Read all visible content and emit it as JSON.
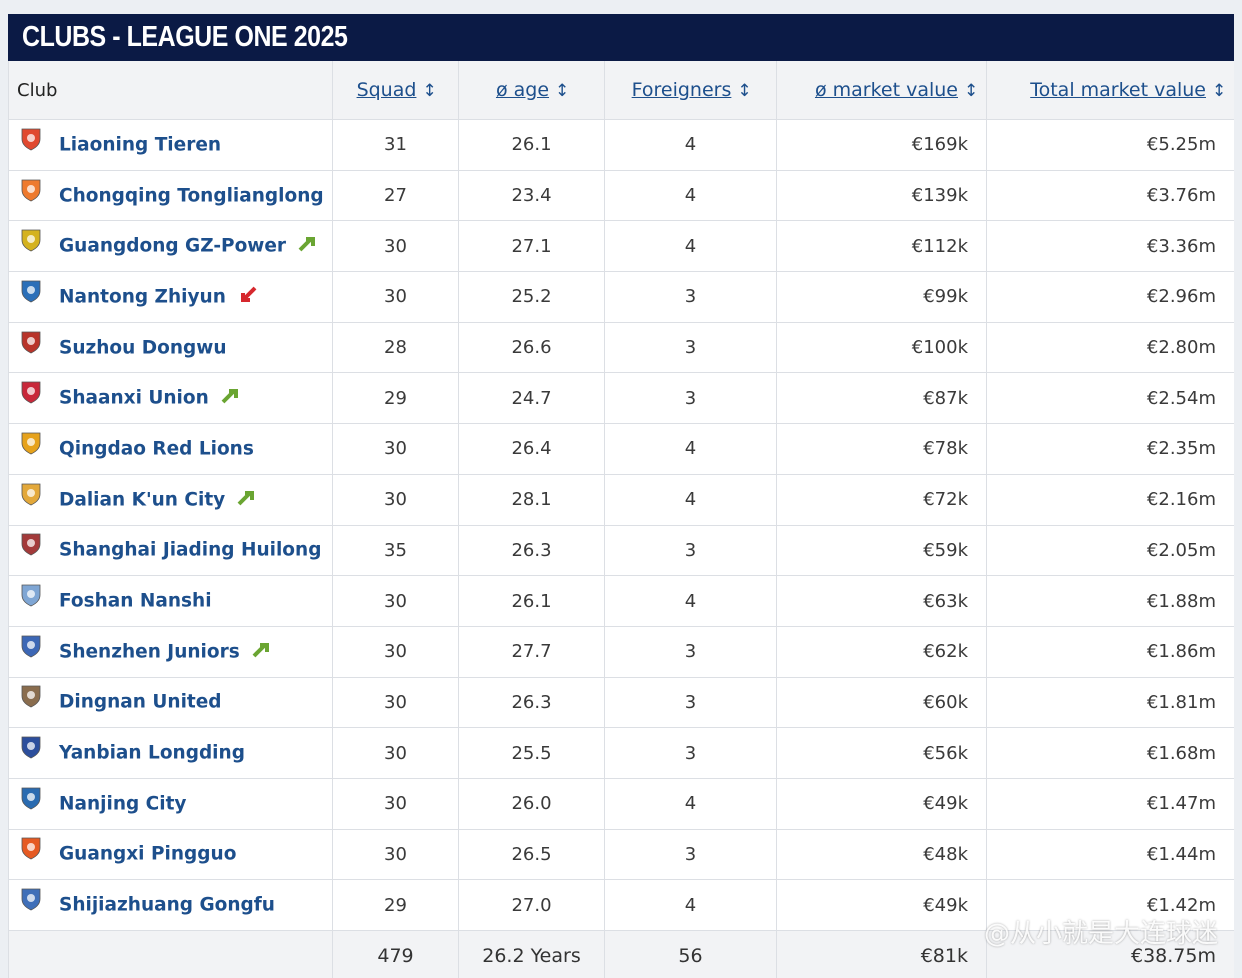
{
  "title": "CLUBS - LEAGUE ONE 2025",
  "headers": {
    "club": "Club",
    "squad": "Squad",
    "age": "ø age",
    "foreigners": "Foreigners",
    "market_value": "ø market value",
    "total_value": "Total market value"
  },
  "clubs": [
    {
      "name": "Liaoning Tieren",
      "squad": "31",
      "age": "26.1",
      "foreigners": "4",
      "mv": "€169k",
      "total": "€5.25m",
      "trend": null,
      "crest": "#e0492f"
    },
    {
      "name": "Chongqing Tonglianglong",
      "squad": "27",
      "age": "23.4",
      "foreigners": "4",
      "mv": "€139k",
      "total": "€3.76m",
      "trend": null,
      "crest": "#ee7a2e"
    },
    {
      "name": "Guangdong GZ-Power",
      "squad": "30",
      "age": "27.1",
      "foreigners": "4",
      "mv": "€112k",
      "total": "€3.36m",
      "trend": "up",
      "crest": "#d4b21f"
    },
    {
      "name": "Nantong Zhiyun",
      "squad": "30",
      "age": "25.2",
      "foreigners": "3",
      "mv": "€99k",
      "total": "€2.96m",
      "trend": "down",
      "crest": "#2b6fb8"
    },
    {
      "name": "Suzhou Dongwu",
      "squad": "28",
      "age": "26.6",
      "foreigners": "3",
      "mv": "€100k",
      "total": "€2.80m",
      "trend": null,
      "crest": "#b8342a"
    },
    {
      "name": "Shaanxi Union",
      "squad": "29",
      "age": "24.7",
      "foreigners": "3",
      "mv": "€87k",
      "total": "€2.54m",
      "trend": "up",
      "crest": "#c8283a"
    },
    {
      "name": "Qingdao Red Lions",
      "squad": "30",
      "age": "26.4",
      "foreigners": "4",
      "mv": "€78k",
      "total": "€2.35m",
      "trend": null,
      "crest": "#e6a21c"
    },
    {
      "name": "Dalian K'un City",
      "squad": "30",
      "age": "28.1",
      "foreigners": "4",
      "mv": "€72k",
      "total": "€2.16m",
      "trend": "up",
      "crest": "#e3a83a"
    },
    {
      "name": "Shanghai Jiading Huilong",
      "squad": "35",
      "age": "26.3",
      "foreigners": "3",
      "mv": "€59k",
      "total": "€2.05m",
      "trend": null,
      "crest": "#a33a3a"
    },
    {
      "name": "Foshan Nanshi",
      "squad": "30",
      "age": "26.1",
      "foreigners": "4",
      "mv": "€63k",
      "total": "€1.88m",
      "trend": null,
      "crest": "#7fa6d4"
    },
    {
      "name": "Shenzhen Juniors",
      "squad": "30",
      "age": "27.7",
      "foreigners": "3",
      "mv": "€62k",
      "total": "€1.86m",
      "trend": "up",
      "crest": "#3c67b5"
    },
    {
      "name": "Dingnan United",
      "squad": "30",
      "age": "26.3",
      "foreigners": "3",
      "mv": "€60k",
      "total": "€1.81m",
      "trend": null,
      "crest": "#8a6d4e"
    },
    {
      "name": "Yanbian Longding",
      "squad": "30",
      "age": "25.5",
      "foreigners": "3",
      "mv": "€56k",
      "total": "€1.68m",
      "trend": null,
      "crest": "#2c4e9c"
    },
    {
      "name": "Nanjing City",
      "squad": "30",
      "age": "26.0",
      "foreigners": "4",
      "mv": "€49k",
      "total": "€1.47m",
      "trend": null,
      "crest": "#2a6bb0"
    },
    {
      "name": "Guangxi Pingguo",
      "squad": "30",
      "age": "26.5",
      "foreigners": "3",
      "mv": "€48k",
      "total": "€1.44m",
      "trend": null,
      "crest": "#e55a23"
    },
    {
      "name": "Shijiazhuang Gongfu",
      "squad": "29",
      "age": "27.0",
      "foreigners": "4",
      "mv": "€49k",
      "total": "€1.42m",
      "trend": null,
      "crest": "#3f6fb8"
    }
  ],
  "totals": {
    "squad": "479",
    "age": "26.2 Years",
    "foreigners": "56",
    "mv": "€81k",
    "total": "€38.75m"
  },
  "watermark": "@从小就是大连球迷",
  "colors": {
    "header_bg": "#0b1a45",
    "link": "#1d4f8c",
    "trend_up": "#6aa532",
    "trend_down": "#d6282e"
  }
}
